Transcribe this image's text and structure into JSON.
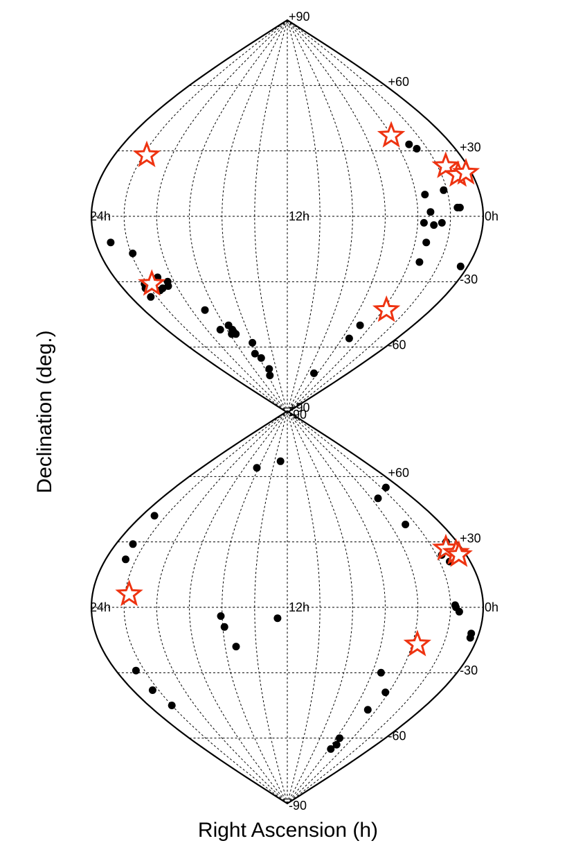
{
  "colors": {
    "dot": "#000000",
    "star": "#ee3311",
    "grid": "#000000",
    "background": "#ffffff"
  },
  "axes": {
    "xlabel": "Right Ascension (h)",
    "ylabel": "Declination (deg.)"
  },
  "chart_data": [
    {
      "type": "scatter",
      "projection": "sinusoidal (all-sky)",
      "xlabel": "Right Ascension (h)",
      "ylabel": "Declination (deg.)",
      "xlim": [
        0,
        24
      ],
      "ylim": [
        -90,
        90
      ],
      "ra_tick_labels": [
        "24h",
        "12h",
        "0h"
      ],
      "dec_tick_labels": [
        "+90",
        "+60",
        "+30",
        "-30",
        "-60",
        "-90"
      ],
      "grid": true,
      "series": [
        {
          "marker": "dot",
          "points": [
            {
              "ra": 3.11,
              "dec": 33
            },
            {
              "ra": 2.75,
              "dec": 31
            },
            {
              "ra": 2.21,
              "dec": 12
            },
            {
              "ra": 1.55,
              "dec": 4
            },
            {
              "ra": 1.4,
              "dec": 4
            },
            {
              "ra": 3.44,
              "dec": 10
            },
            {
              "ra": 3.22,
              "dec": 2
            },
            {
              "ra": 3.62,
              "dec": -3
            },
            {
              "ra": 2.52,
              "dec": -3
            },
            {
              "ra": 3.0,
              "dec": -4
            },
            {
              "ra": 3.3,
              "dec": -12
            },
            {
              "ra": 3.33,
              "dec": -21
            },
            {
              "ra": 0.47,
              "dec": -23
            },
            {
              "ra": 5.07,
              "dec": -50
            },
            {
              "ra": 5.22,
              "dec": -56
            },
            {
              "ra": 6.72,
              "dec": -72
            },
            {
              "ra": 23.06,
              "dec": -12
            },
            {
              "ra": 21.9,
              "dec": -17
            },
            {
              "ra": 21.0,
              "dec": -28
            },
            {
              "ra": 21.7,
              "dec": -31
            },
            {
              "ra": 22.2,
              "dec": -31
            },
            {
              "ra": 22.36,
              "dec": -33
            },
            {
              "ra": 21.1,
              "dec": -33
            },
            {
              "ra": 20.6,
              "dec": -32
            },
            {
              "ra": 20.46,
              "dec": -30
            },
            {
              "ra": 21.4,
              "dec": -34
            },
            {
              "ra": 22.47,
              "dec": -37
            },
            {
              "ra": 18.9,
              "dec": -43
            },
            {
              "ra": 17.6,
              "dec": -50
            },
            {
              "ra": 17.47,
              "dec": -52
            },
            {
              "ra": 17.47,
              "dec": -53
            },
            {
              "ra": 17.36,
              "dec": -54
            },
            {
              "ra": 17.79,
              "dec": -54
            },
            {
              "ra": 18.67,
              "dec": -52
            },
            {
              "ra": 16.03,
              "dec": -58
            },
            {
              "ra": 16.36,
              "dec": -63
            },
            {
              "ra": 15.78,
              "dec": -65
            },
            {
              "ra": 15.25,
              "dec": -70
            },
            {
              "ra": 15.65,
              "dec": -73
            }
          ]
        },
        {
          "marker": "star",
          "points": [
            {
              "ra": 4.03,
              "dec": 37
            },
            {
              "ra": 1.46,
              "dec": 23
            },
            {
              "ra": 0.94,
              "dec": 19
            },
            {
              "ra": 0.36,
              "dec": 20
            },
            {
              "ra": 3.7,
              "dec": -43
            },
            {
              "ra": 21.75,
              "dec": 28
            },
            {
              "ra": 21.68,
              "dec": -31
            }
          ]
        }
      ]
    },
    {
      "type": "scatter",
      "projection": "sinusoidal (all-sky)",
      "xlabel": "Right Ascension (h)",
      "ylabel": "Declination (deg.)",
      "xlim": [
        0,
        24
      ],
      "ylim": [
        -90,
        90
      ],
      "ra_tick_labels": [
        "24h",
        "12h",
        "0h"
      ],
      "dec_tick_labels": [
        "+90",
        "+60",
        "+30",
        "-30",
        "-60",
        "-90"
      ],
      "grid": true,
      "series": [
        {
          "marker": "dot",
          "points": [
            {
              "ra": 1.47,
              "dec": 55
            },
            {
              "ra": 3.36,
              "dec": 50
            },
            {
              "ra": 2.82,
              "dec": 38
            },
            {
              "ra": 0.77,
              "dec": 30
            },
            {
              "ra": 1.65,
              "dec": 24
            },
            {
              "ra": 1.35,
              "dec": 21
            },
            {
              "ra": 1.72,
              "dec": 1
            },
            {
              "ra": 1.67,
              "dec": 0
            },
            {
              "ra": 1.46,
              "dec": -2
            },
            {
              "ra": 0.48,
              "dec": -12
            },
            {
              "ra": 0.45,
              "dec": -14
            },
            {
              "ra": 5.37,
              "dec": -30
            },
            {
              "ra": 4.27,
              "dec": -39
            },
            {
              "ra": 4.77,
              "dec": -47
            },
            {
              "ra": 5.6,
              "dec": -60
            },
            {
              "ra": 5.35,
              "dec": -63
            },
            {
              "ra": 5.7,
              "dec": -65
            },
            {
              "ra": 13.06,
              "dec": 67
            },
            {
              "ra": 16.26,
              "dec": 64
            },
            {
              "ra": 22.95,
              "dec": 42
            },
            {
              "ra": 22.81,
              "dec": 29
            },
            {
              "ra": 22.68,
              "dec": 22
            },
            {
              "ra": 12.6,
              "dec": -5
            },
            {
              "ra": 16.08,
              "dec": -4
            },
            {
              "ra": 15.9,
              "dec": -9
            },
            {
              "ra": 15.3,
              "dec": -18
            },
            {
              "ra": 22.6,
              "dec": -29
            },
            {
              "ra": 22.47,
              "dec": -38
            },
            {
              "ra": 22.0,
              "dec": -45
            }
          ]
        },
        {
          "marker": "star",
          "points": [
            {
              "ra": 1.1,
              "dec": 27
            },
            {
              "ra": 0.6,
              "dec": 25
            },
            {
              "ra": 0.5,
              "dec": 24
            },
            {
              "ra": 3.67,
              "dec": -17
            },
            {
              "ra": 21.74,
              "dec": 6
            }
          ]
        }
      ]
    }
  ]
}
